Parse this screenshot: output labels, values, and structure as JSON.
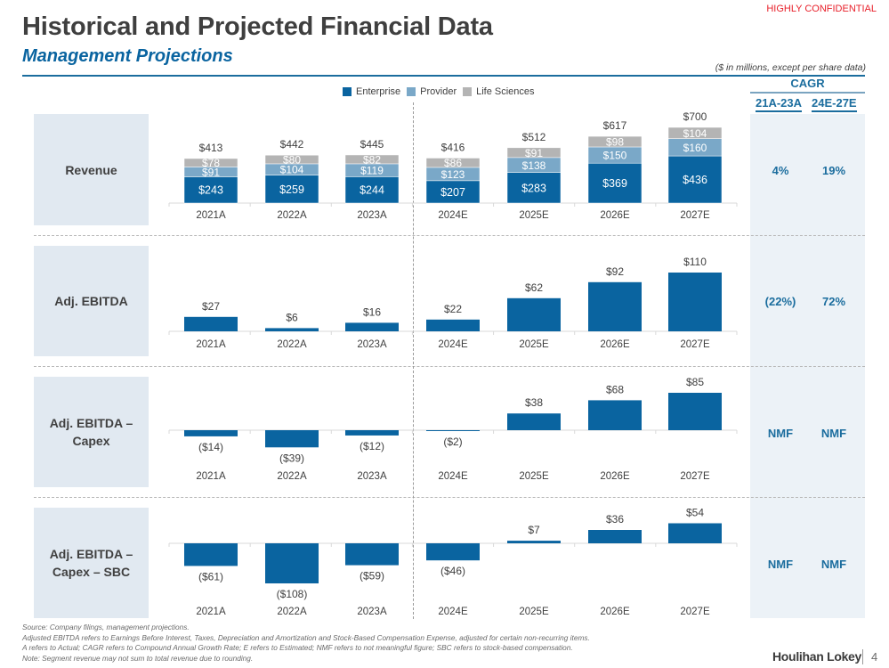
{
  "header": {
    "confidential": "HIGHLY CONFIDENTIAL",
    "title": "Historical and Projected Financial Data",
    "subtitle": "Management Projections",
    "units_note": "($ in millions, except per share data)"
  },
  "colors": {
    "enterprise": "#0a64a0",
    "provider": "#7aa8c8",
    "life_sciences": "#b4b4b4",
    "accent": "#1b6d9e",
    "confidential": "#e8202a"
  },
  "legend": [
    {
      "name": "Enterprise",
      "color": "#0a64a0"
    },
    {
      "name": "Provider",
      "color": "#7aa8c8"
    },
    {
      "name": "Life Sciences",
      "color": "#b4b4b4"
    }
  ],
  "cagr": {
    "title": "CAGR",
    "columns": [
      "21A-23A",
      "24E-27E"
    ],
    "rows": [
      [
        "4%",
        "19%"
      ],
      [
        "(22%)",
        "72%"
      ],
      [
        "NMF",
        "NMF"
      ],
      [
        "NMF",
        "NMF"
      ]
    ]
  },
  "row_labels": [
    "Revenue",
    "Adj. EBITDA",
    "Adj. EBITDA –\nCapex",
    "Adj. EBITDA –\nCapex – SBC"
  ],
  "chart_data": [
    {
      "type": "bar",
      "stacked": true,
      "title": "Revenue",
      "categories": [
        "2021A",
        "2022A",
        "2023A",
        "2024E",
        "2025E",
        "2026E",
        "2027E"
      ],
      "series": [
        {
          "name": "Enterprise",
          "values": [
            243,
            259,
            244,
            207,
            283,
            369,
            436
          ],
          "labels": [
            "$243",
            "$259",
            "$244",
            "$207",
            "$283",
            "$369",
            "$436"
          ]
        },
        {
          "name": "Provider",
          "values": [
            91,
            104,
            119,
            123,
            138,
            150,
            160
          ],
          "labels": [
            "$91",
            "$104",
            "$119",
            "$123",
            "$138",
            "$150",
            "$160"
          ]
        },
        {
          "name": "Life Sciences",
          "values": [
            78,
            80,
            82,
            86,
            91,
            98,
            104
          ],
          "labels": [
            "$78",
            "$80",
            "$82",
            "$86",
            "$91",
            "$98",
            "$104"
          ]
        }
      ],
      "totals": [
        413,
        442,
        445,
        416,
        512,
        617,
        700
      ],
      "total_labels": [
        "$413",
        "$442",
        "$445",
        "$416",
        "$512",
        "$617",
        "$700"
      ],
      "ylim": [
        0,
        700
      ]
    },
    {
      "type": "bar",
      "title": "Adj. EBITDA",
      "categories": [
        "2021A",
        "2022A",
        "2023A",
        "2024E",
        "2025E",
        "2026E",
        "2027E"
      ],
      "values": [
        27,
        6,
        16,
        22,
        62,
        92,
        110
      ],
      "labels": [
        "$27",
        "$6",
        "$16",
        "$22",
        "$62",
        "$92",
        "$110"
      ],
      "ylim": [
        0,
        110
      ]
    },
    {
      "type": "bar",
      "title": "Adj. EBITDA – Capex",
      "categories": [
        "2021A",
        "2022A",
        "2023A",
        "2024E",
        "2025E",
        "2026E",
        "2027E"
      ],
      "values": [
        -14,
        -39,
        -12,
        -2,
        38,
        68,
        85
      ],
      "labels": [
        "($14)",
        "($39)",
        "($12)",
        "($2)",
        "$38",
        "$68",
        "$85"
      ],
      "ylim": [
        -39,
        85
      ]
    },
    {
      "type": "bar",
      "title": "Adj. EBITDA – Capex – SBC",
      "categories": [
        "2021A",
        "2022A",
        "2023A",
        "2024E",
        "2025E",
        "2026E",
        "2027E"
      ],
      "values": [
        -61,
        -108,
        -59,
        -46,
        7,
        36,
        54
      ],
      "labels": [
        "($61)",
        "($108)",
        "($59)",
        "($46)",
        "$7",
        "$36",
        "$54"
      ],
      "ylim": [
        -108,
        54
      ]
    }
  ],
  "footnotes": [
    "Source: Company filings, management projections.",
    "Adjusted EBITDA refers to Earnings Before Interest, Taxes, Depreciation and Amortization and Stock-Based Compensation Expense, adjusted for certain non-recurring items.",
    "A refers to Actual; CAGR refers to Compound Annual Growth Rate; E refers to Estimated; NMF refers to not meaningful figure; SBC refers to stock-based compensation.",
    "Note: Segment revenue may not sum to total revenue due to rounding."
  ],
  "footer": {
    "brand": "Houlihan Lokey",
    "page": "4"
  }
}
